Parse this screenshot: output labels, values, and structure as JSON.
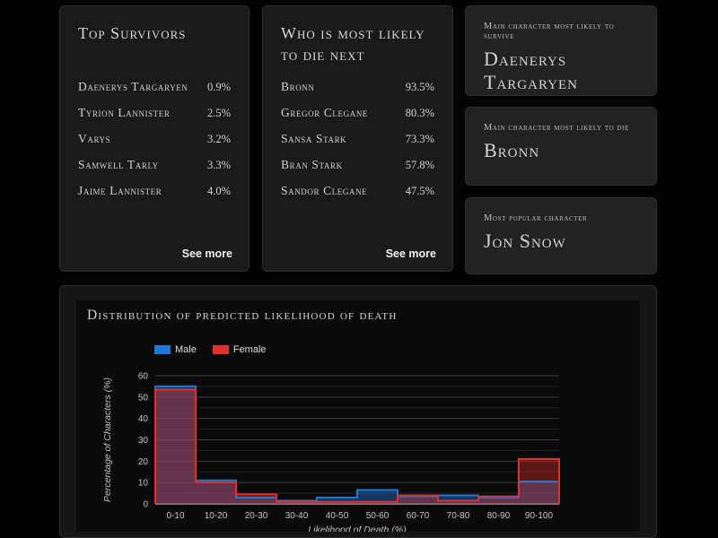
{
  "cards": {
    "top_survivors": {
      "title": "Top Survivors",
      "rows": [
        {
          "name": "Daenerys Targaryen",
          "value": "0.9%"
        },
        {
          "name": "Tyrion Lannister",
          "value": "2.5%"
        },
        {
          "name": "Varys",
          "value": "3.2%"
        },
        {
          "name": "Samwell Tarly",
          "value": "3.3%"
        },
        {
          "name": "Jaime Lannister",
          "value": "4.0%"
        }
      ],
      "see_more": "See more"
    },
    "die_next": {
      "title": "Who is most likely to die next",
      "rows": [
        {
          "name": "Bronn",
          "value": "93.5%"
        },
        {
          "name": "Gregor Clegane",
          "value": "80.3%"
        },
        {
          "name": "Sansa Stark",
          "value": "73.3%"
        },
        {
          "name": "Bran Stark",
          "value": "57.8%"
        },
        {
          "name": "Sandor Clegane",
          "value": "47.5%"
        }
      ],
      "see_more": "See more"
    },
    "stats": [
      {
        "label": "Main character most likely to survive",
        "value": "Daenerys Targaryen"
      },
      {
        "label": "Main character most likely to die",
        "value": "Bronn"
      },
      {
        "label": "Most popular character",
        "value": "Jon Snow"
      }
    ]
  },
  "chart_data": {
    "type": "bar",
    "style": "step-histogram",
    "title": "Distribution of predicted likelihood of death",
    "categories": [
      "0-10",
      "10-20",
      "20-30",
      "30-40",
      "40-50",
      "50-60",
      "60-70",
      "70-80",
      "80-90",
      "90-100"
    ],
    "series": [
      {
        "name": "Male",
        "color": "#1e78d8",
        "values": [
          55,
          11,
          3,
          1.5,
          3,
          6.5,
          3.5,
          4,
          3,
          10.5
        ]
      },
      {
        "name": "Female",
        "color": "#e62d2a",
        "values": [
          53.5,
          10,
          4.5,
          1,
          1,
          1,
          4,
          1.5,
          3.5,
          21
        ]
      }
    ],
    "xlabel": "Likelihood of Death (%)",
    "ylabel": "Percentage of Characters (%)",
    "ylim": [
      0,
      60
    ],
    "yticks": [
      0,
      10,
      20,
      30,
      40,
      50,
      60
    ],
    "grid": "horizontal every 5, major every 10",
    "legend_position": "top-left"
  }
}
